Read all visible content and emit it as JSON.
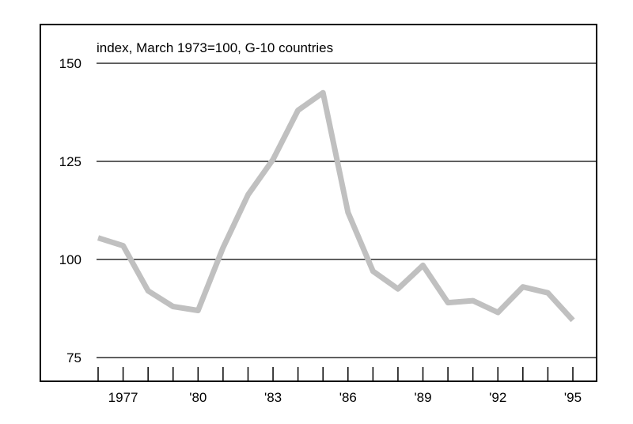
{
  "chart_data": {
    "type": "line",
    "subtitle": "index, March 1973=100, G-10 countries",
    "x": [
      1976,
      1977,
      1978,
      1979,
      1980,
      1981,
      1982,
      1983,
      1984,
      1985,
      1986,
      1987,
      1988,
      1989,
      1990,
      1991,
      1992,
      1993,
      1994,
      1995
    ],
    "series": [
      {
        "values": [
          105.5,
          103.5,
          92,
          88,
          87,
          103,
          116.5,
          125.5,
          138,
          142.5,
          112,
          97,
          92.5,
          98.5,
          89,
          89.5,
          86.5,
          93,
          91.5,
          84.5
        ],
        "color": "#c0c0c0"
      }
    ],
    "xlim": [
      1976,
      1995
    ],
    "ylim": [
      75,
      150
    ],
    "yticks": [
      75,
      100,
      125,
      150
    ],
    "ytick_labels": [
      "75",
      "100",
      "125",
      "150"
    ],
    "xtick_labels": [
      {
        "x": 1977,
        "label": "1977"
      },
      {
        "x": 1980,
        "label": "'80"
      },
      {
        "x": 1983,
        "label": "'83"
      },
      {
        "x": 1986,
        "label": "'86"
      },
      {
        "x": 1989,
        "label": "'89"
      },
      {
        "x": 1992,
        "label": "'92"
      },
      {
        "x": 1995,
        "label": "'95"
      }
    ],
    "grid": true
  }
}
